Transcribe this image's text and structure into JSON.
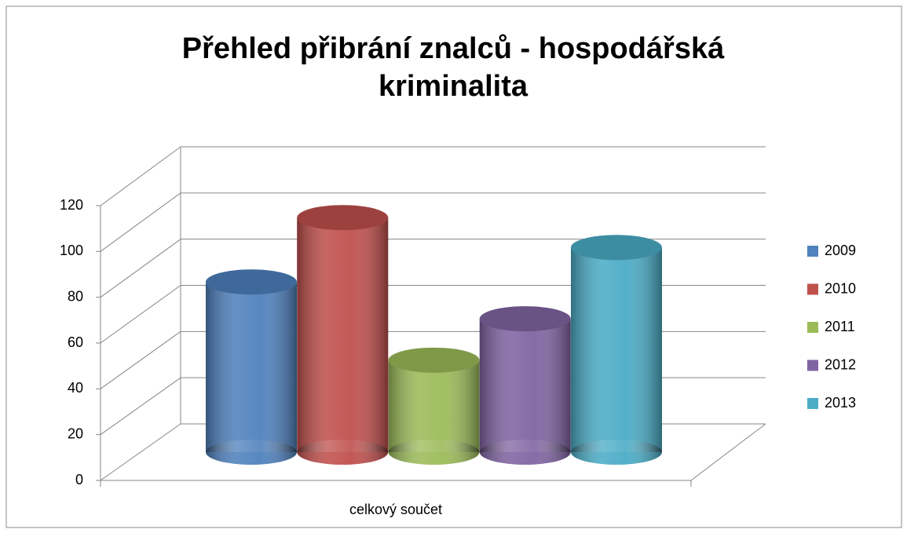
{
  "chart_data": {
    "type": "bar3d",
    "title": "Přehled přibrání znalců - hospodářská kriminalita",
    "categories": [
      "celkový součet"
    ],
    "series": [
      {
        "name": "2009",
        "color": "#4f81bd",
        "values": [
          74
        ]
      },
      {
        "name": "2010",
        "color": "#c0504d",
        "values": [
          102
        ]
      },
      {
        "name": "2011",
        "color": "#9bbb59",
        "values": [
          40
        ]
      },
      {
        "name": "2012",
        "color": "#8064a2",
        "values": [
          58
        ]
      },
      {
        "name": "2013",
        "color": "#4bacc6",
        "values": [
          89
        ]
      }
    ],
    "ylim": [
      0,
      120
    ],
    "yticks": [
      0,
      20,
      40,
      60,
      80,
      100,
      120
    ],
    "grid": true,
    "legend": "right"
  }
}
